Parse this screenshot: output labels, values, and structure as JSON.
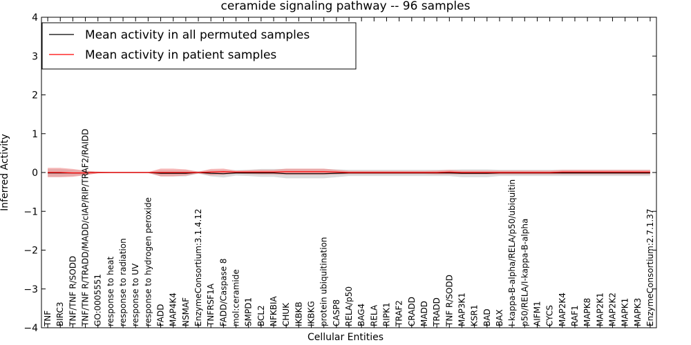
{
  "chart_data": {
    "type": "line",
    "title": "ceramide signaling pathway -- 96 samples",
    "xlabel": "Cellular Entities",
    "ylabel": "Inferred Activity",
    "ylim": [
      -4,
      4
    ],
    "yticks": [
      {
        "value": 4,
        "label": "4"
      },
      {
        "value": 3,
        "label": "3"
      },
      {
        "value": 2,
        "label": "2"
      },
      {
        "value": 1,
        "label": "1"
      },
      {
        "value": 0,
        "label": "0"
      },
      {
        "value": -1,
        "label": "−1"
      },
      {
        "value": -2,
        "label": "−2"
      },
      {
        "value": -3,
        "label": "−3"
      },
      {
        "value": -4,
        "label": "−4"
      }
    ],
    "grid": false,
    "legend_position": "top-left",
    "categories": [
      "TNF",
      "BIRC3",
      "TNF/TNF R/SODD",
      "TNF/TNF R/TRADD/MADD/cIAP/RIP/TRAF2/RAIDD",
      "GO:0005551",
      "response to heat",
      "response to radiation",
      "response to UV",
      "response to hydrogen peroxide",
      "FADD",
      "MAP4K4",
      "NSMAF",
      "EnzymeConsortium:3.1.4.12",
      "TNFRSF1A",
      "FADD/Caspase 8",
      "mol:ceramide",
      "SMPD1",
      "BCL2",
      "NFKBIA",
      "CHUK",
      "IKBKB",
      "IKBKG",
      "protein ubiquitination",
      "CASP8",
      "RELA/p50",
      "BAG4",
      "RELA",
      "RIPK1",
      "TRAF2",
      "CRADD",
      "MADD",
      "TRADD",
      "TNF R/SODD",
      "MAP3K1",
      "KSR1",
      "BAD",
      "BAX",
      "I-kappa-B-alpha/RELA/p50/ubiquitin",
      "p50/RELA/I-kappa-B-alpha",
      "AIFM1",
      "CYCS",
      "MAP2K4",
      "RAF1",
      "MAPK8",
      "MAP2K1",
      "MAP2K2",
      "MAPK1",
      "MAPK3",
      "EnzymeConsortium:2.7.1.37"
    ],
    "series": [
      {
        "name": "Mean activity in all permuted samples",
        "color": "#000000",
        "band_color": "#c0c0c0",
        "values": [
          -0.01,
          -0.01,
          -0.01,
          -0.01,
          0.0,
          0.0,
          0.0,
          0.0,
          0.0,
          -0.02,
          -0.02,
          -0.02,
          0.0,
          -0.02,
          -0.03,
          -0.01,
          -0.01,
          -0.01,
          -0.01,
          -0.03,
          -0.03,
          -0.03,
          -0.03,
          -0.02,
          -0.01,
          -0.01,
          -0.01,
          -0.01,
          -0.01,
          -0.01,
          -0.01,
          -0.01,
          -0.01,
          -0.02,
          -0.02,
          -0.02,
          -0.01,
          -0.01,
          -0.01,
          -0.01,
          -0.01,
          -0.01,
          -0.01,
          -0.01,
          -0.01,
          -0.01,
          -0.01,
          -0.01,
          -0.01
        ],
        "band": [
          0.1,
          0.1,
          0.08,
          0.05,
          0.02,
          0.01,
          0.01,
          0.01,
          0.01,
          0.08,
          0.08,
          0.08,
          0.03,
          0.08,
          0.1,
          0.07,
          0.08,
          0.1,
          0.1,
          0.12,
          0.12,
          0.12,
          0.12,
          0.1,
          0.08,
          0.08,
          0.08,
          0.08,
          0.08,
          0.08,
          0.08,
          0.08,
          0.08,
          0.1,
          0.1,
          0.1,
          0.08,
          0.08,
          0.08,
          0.08,
          0.08,
          0.08,
          0.08,
          0.08,
          0.08,
          0.08,
          0.08,
          0.08,
          0.08
        ]
      },
      {
        "name": "Mean activity in patient samples",
        "color": "#ff0000",
        "band_color": "#f08080",
        "values": [
          0.0,
          0.0,
          -0.01,
          -0.01,
          0.0,
          0.0,
          0.0,
          0.0,
          0.0,
          0.0,
          0.0,
          0.0,
          0.0,
          0.01,
          0.02,
          0.01,
          0.01,
          0.01,
          0.01,
          0.02,
          0.02,
          0.02,
          0.02,
          0.01,
          0.0,
          0.0,
          0.0,
          0.0,
          0.0,
          0.0,
          0.0,
          0.0,
          0.01,
          0.0,
          0.0,
          0.0,
          0.0,
          0.0,
          0.0,
          0.0,
          0.0,
          0.01,
          0.01,
          0.01,
          0.01,
          0.01,
          0.01,
          0.01,
          0.01
        ],
        "band": [
          0.12,
          0.12,
          0.1,
          0.06,
          0.02,
          0.01,
          0.01,
          0.01,
          0.01,
          0.1,
          0.1,
          0.08,
          0.02,
          0.08,
          0.08,
          0.04,
          0.05,
          0.06,
          0.06,
          0.08,
          0.08,
          0.08,
          0.08,
          0.06,
          0.04,
          0.04,
          0.04,
          0.04,
          0.04,
          0.04,
          0.04,
          0.05,
          0.06,
          0.05,
          0.05,
          0.05,
          0.05,
          0.05,
          0.05,
          0.05,
          0.05,
          0.06,
          0.06,
          0.06,
          0.06,
          0.06,
          0.06,
          0.06,
          0.06
        ]
      }
    ]
  }
}
